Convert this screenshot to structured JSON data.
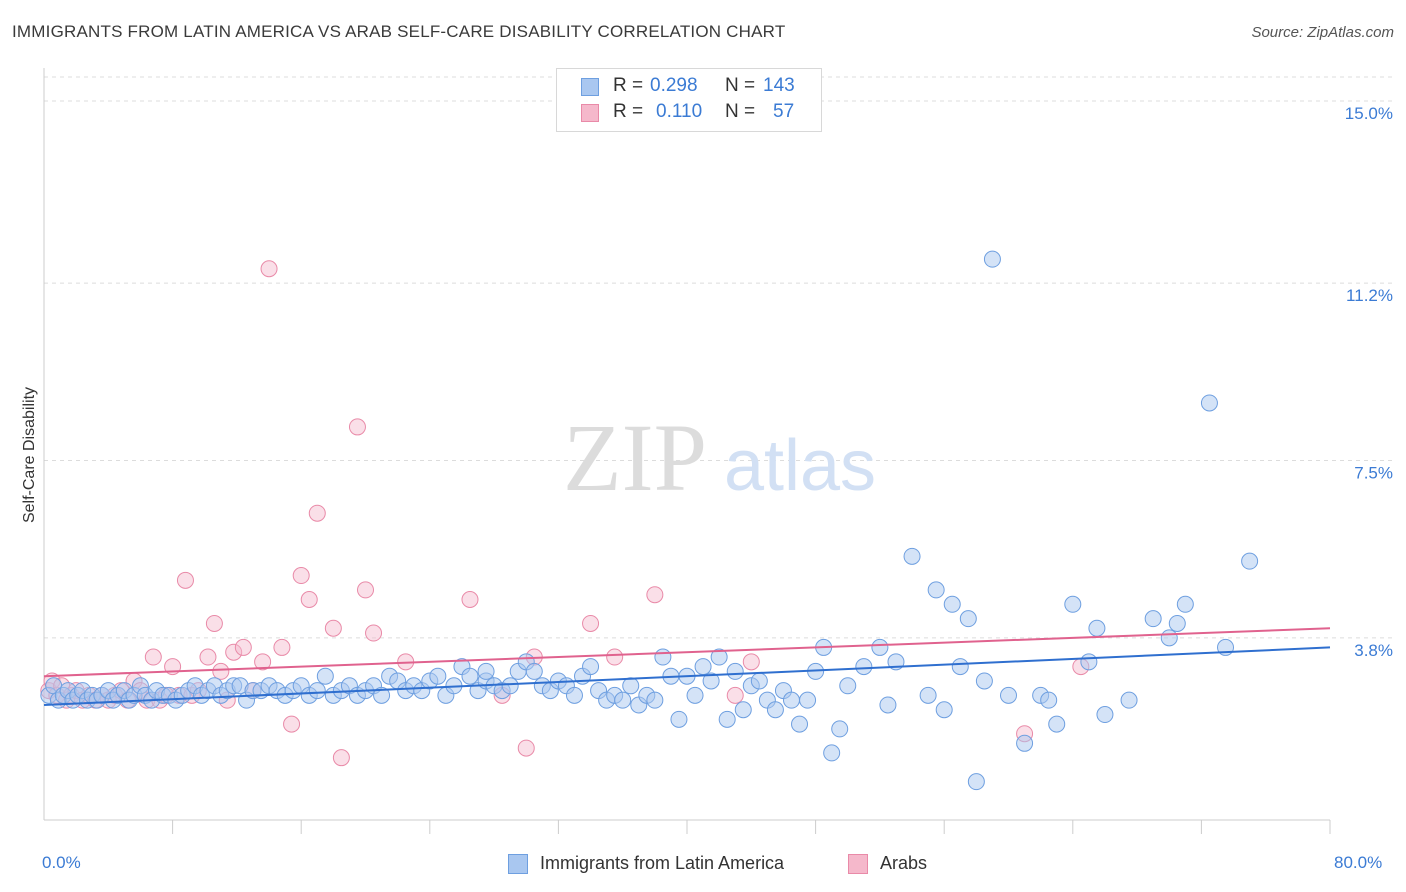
{
  "header": {
    "title": "IMMIGRANTS FROM LATIN AMERICA VS ARAB SELF-CARE DISABILITY CORRELATION CHART",
    "source": "Source: ZipAtlas.com"
  },
  "watermark": {
    "zip": "ZIP",
    "atlas": "atlas"
  },
  "stats": {
    "latin": {
      "r_label": "R =",
      "r_value": "0.298",
      "n_label": "N =",
      "n_value": "143",
      "color": "#a9c7f0"
    },
    "arab": {
      "r_label": "R =",
      "r_value": "0.110",
      "n_label": "N =",
      "n_value": "57",
      "color": "#f5b8cb"
    }
  },
  "legend": {
    "latin_label": "Immigrants from Latin America",
    "arab_label": "Arabs"
  },
  "colors": {
    "latin_fill": "#a9c7f0",
    "latin_stroke": "#6e9fe0",
    "latin_line": "#2f6fcf",
    "arab_fill": "#f5b8cb",
    "arab_stroke": "#e98aa8",
    "arab_line": "#e0628e",
    "tick_text": "#3b7bd4",
    "grid": "#dcdcdc"
  },
  "chart_data": {
    "type": "scatter",
    "title": "IMMIGRANTS FROM LATIN AMERICA VS ARAB SELF-CARE DISABILITY CORRELATION CHART",
    "xlabel": "",
    "ylabel": "Self-Care Disability",
    "xlim": [
      0,
      80
    ],
    "ylim": [
      0,
      15.5
    ],
    "x_tick_labels": [
      "0.0%",
      "80.0%"
    ],
    "y_ticks": [
      3.8,
      7.5,
      11.2,
      15.0
    ],
    "y_tick_labels": [
      "3.8%",
      "7.5%",
      "11.2%",
      "15.0%"
    ],
    "grid": "horizontal dashed",
    "legend_position": "bottom",
    "series": [
      {
        "name": "Immigrants from Latin America",
        "trend": {
          "x": [
            0,
            80
          ],
          "y": [
            2.4,
            3.6
          ]
        },
        "points": [
          [
            0.3,
            2.6
          ],
          [
            0.6,
            2.8
          ],
          [
            0.9,
            2.5
          ],
          [
            1.2,
            2.6
          ],
          [
            1.5,
            2.7
          ],
          [
            1.8,
            2.5
          ],
          [
            2.1,
            2.6
          ],
          [
            2.4,
            2.7
          ],
          [
            2.7,
            2.5
          ],
          [
            3.0,
            2.6
          ],
          [
            3.3,
            2.5
          ],
          [
            3.6,
            2.6
          ],
          [
            4.0,
            2.7
          ],
          [
            4.3,
            2.5
          ],
          [
            4.6,
            2.6
          ],
          [
            5.0,
            2.7
          ],
          [
            5.3,
            2.5
          ],
          [
            5.6,
            2.6
          ],
          [
            6.0,
            2.8
          ],
          [
            6.3,
            2.6
          ],
          [
            6.7,
            2.5
          ],
          [
            7.0,
            2.7
          ],
          [
            7.4,
            2.6
          ],
          [
            7.8,
            2.6
          ],
          [
            8.2,
            2.5
          ],
          [
            8.6,
            2.6
          ],
          [
            9.0,
            2.7
          ],
          [
            9.4,
            2.8
          ],
          [
            9.8,
            2.6
          ],
          [
            10.2,
            2.7
          ],
          [
            10.6,
            2.8
          ],
          [
            11.0,
            2.6
          ],
          [
            11.4,
            2.7
          ],
          [
            11.8,
            2.8
          ],
          [
            12.2,
            2.8
          ],
          [
            12.6,
            2.5
          ],
          [
            13.0,
            2.7
          ],
          [
            13.5,
            2.7
          ],
          [
            14.0,
            2.8
          ],
          [
            14.5,
            2.7
          ],
          [
            15.0,
            2.6
          ],
          [
            15.5,
            2.7
          ],
          [
            16.0,
            2.8
          ],
          [
            16.5,
            2.6
          ],
          [
            17.0,
            2.7
          ],
          [
            17.5,
            3.0
          ],
          [
            18.0,
            2.6
          ],
          [
            18.5,
            2.7
          ],
          [
            19.0,
            2.8
          ],
          [
            19.5,
            2.6
          ],
          [
            20.0,
            2.7
          ],
          [
            20.5,
            2.8
          ],
          [
            21.0,
            2.6
          ],
          [
            21.5,
            3.0
          ],
          [
            22.0,
            2.9
          ],
          [
            22.5,
            2.7
          ],
          [
            23.0,
            2.8
          ],
          [
            23.5,
            2.7
          ],
          [
            24.0,
            2.9
          ],
          [
            24.5,
            3.0
          ],
          [
            25.0,
            2.6
          ],
          [
            25.5,
            2.8
          ],
          [
            26.0,
            3.2
          ],
          [
            26.5,
            3.0
          ],
          [
            27.0,
            2.7
          ],
          [
            27.5,
            2.9
          ],
          [
            28.0,
            2.8
          ],
          [
            28.5,
            2.7
          ],
          [
            29.0,
            2.8
          ],
          [
            29.5,
            3.1
          ],
          [
            30.0,
            3.3
          ],
          [
            30.5,
            3.1
          ],
          [
            31.0,
            2.8
          ],
          [
            31.5,
            2.7
          ],
          [
            32.0,
            2.9
          ],
          [
            32.5,
            2.8
          ],
          [
            33.0,
            2.6
          ],
          [
            33.5,
            3.0
          ],
          [
            34.0,
            3.2
          ],
          [
            34.5,
            2.7
          ],
          [
            35.0,
            2.5
          ],
          [
            35.5,
            2.6
          ],
          [
            36.0,
            2.5
          ],
          [
            36.5,
            2.8
          ],
          [
            37.0,
            2.4
          ],
          [
            37.5,
            2.6
          ],
          [
            38.0,
            2.5
          ],
          [
            38.5,
            3.4
          ],
          [
            39.0,
            3.0
          ],
          [
            39.5,
            2.1
          ],
          [
            40.0,
            3.0
          ],
          [
            40.5,
            2.6
          ],
          [
            41.0,
            3.2
          ],
          [
            41.5,
            2.9
          ],
          [
            42.0,
            3.4
          ],
          [
            42.5,
            2.1
          ],
          [
            43.0,
            3.1
          ],
          [
            43.5,
            2.3
          ],
          [
            44.0,
            2.8
          ],
          [
            44.5,
            2.9
          ],
          [
            45.0,
            2.5
          ],
          [
            45.5,
            2.3
          ],
          [
            46.0,
            2.7
          ],
          [
            46.5,
            2.5
          ],
          [
            47.0,
            2.0
          ],
          [
            47.5,
            2.5
          ],
          [
            48.0,
            3.1
          ],
          [
            48.5,
            3.6
          ],
          [
            49.0,
            1.4
          ],
          [
            49.5,
            1.9
          ],
          [
            50.0,
            2.8
          ],
          [
            51.0,
            3.2
          ],
          [
            52.0,
            3.6
          ],
          [
            52.5,
            2.4
          ],
          [
            53.0,
            3.3
          ],
          [
            54.0,
            5.5
          ],
          [
            55.0,
            2.6
          ],
          [
            55.5,
            4.8
          ],
          [
            56.0,
            2.3
          ],
          [
            56.5,
            4.5
          ],
          [
            57.0,
            3.2
          ],
          [
            57.5,
            4.2
          ],
          [
            58.5,
            2.9
          ],
          [
            59.0,
            11.7
          ],
          [
            60.0,
            2.6
          ],
          [
            61.0,
            1.6
          ],
          [
            62.0,
            2.6
          ],
          [
            62.5,
            2.5
          ],
          [
            63.0,
            2.0
          ],
          [
            64.0,
            4.5
          ],
          [
            65.0,
            3.3
          ],
          [
            65.5,
            4.0
          ],
          [
            66.0,
            2.2
          ],
          [
            67.5,
            2.5
          ],
          [
            69.0,
            4.2
          ],
          [
            70.0,
            3.8
          ],
          [
            70.5,
            4.1
          ],
          [
            71.0,
            4.5
          ],
          [
            72.5,
            8.7
          ],
          [
            73.5,
            3.6
          ],
          [
            75.0,
            5.4
          ],
          [
            58.0,
            0.8
          ],
          [
            27.5,
            3.1
          ]
        ]
      },
      {
        "name": "Arabs",
        "trend": {
          "x": [
            0,
            80
          ],
          "y": [
            3.0,
            4.0
          ]
        },
        "points": [
          [
            0.3,
            2.7
          ],
          [
            0.5,
            2.9
          ],
          [
            0.8,
            2.6
          ],
          [
            1.1,
            2.8
          ],
          [
            1.4,
            2.5
          ],
          [
            1.7,
            2.6
          ],
          [
            2.0,
            2.7
          ],
          [
            2.4,
            2.5
          ],
          [
            2.8,
            2.6
          ],
          [
            3.2,
            2.5
          ],
          [
            3.6,
            2.6
          ],
          [
            4.0,
            2.5
          ],
          [
            4.4,
            2.6
          ],
          [
            4.8,
            2.7
          ],
          [
            5.2,
            2.5
          ],
          [
            5.6,
            2.9
          ],
          [
            6.0,
            2.7
          ],
          [
            6.4,
            2.5
          ],
          [
            6.8,
            3.4
          ],
          [
            7.2,
            2.5
          ],
          [
            7.6,
            2.6
          ],
          [
            8.0,
            3.2
          ],
          [
            8.4,
            2.6
          ],
          [
            8.8,
            5.0
          ],
          [
            9.2,
            2.6
          ],
          [
            9.6,
            2.7
          ],
          [
            10.2,
            3.4
          ],
          [
            10.6,
            4.1
          ],
          [
            11.0,
            3.1
          ],
          [
            11.4,
            2.5
          ],
          [
            11.8,
            3.5
          ],
          [
            12.4,
            3.6
          ],
          [
            13.0,
            2.7
          ],
          [
            13.6,
            3.3
          ],
          [
            14.0,
            11.5
          ],
          [
            14.8,
            3.6
          ],
          [
            15.4,
            2.0
          ],
          [
            16.0,
            5.1
          ],
          [
            16.5,
            4.6
          ],
          [
            17.0,
            6.4
          ],
          [
            18.0,
            4.0
          ],
          [
            18.5,
            1.3
          ],
          [
            19.5,
            8.2
          ],
          [
            20.0,
            4.8
          ],
          [
            20.5,
            3.9
          ],
          [
            22.5,
            3.3
          ],
          [
            26.5,
            4.6
          ],
          [
            28.5,
            2.6
          ],
          [
            30.0,
            1.5
          ],
          [
            30.5,
            3.4
          ],
          [
            34.0,
            4.1
          ],
          [
            35.5,
            3.4
          ],
          [
            38.0,
            4.7
          ],
          [
            43.0,
            2.6
          ],
          [
            44.0,
            3.3
          ],
          [
            61.0,
            1.8
          ],
          [
            64.5,
            3.2
          ]
        ]
      }
    ]
  }
}
